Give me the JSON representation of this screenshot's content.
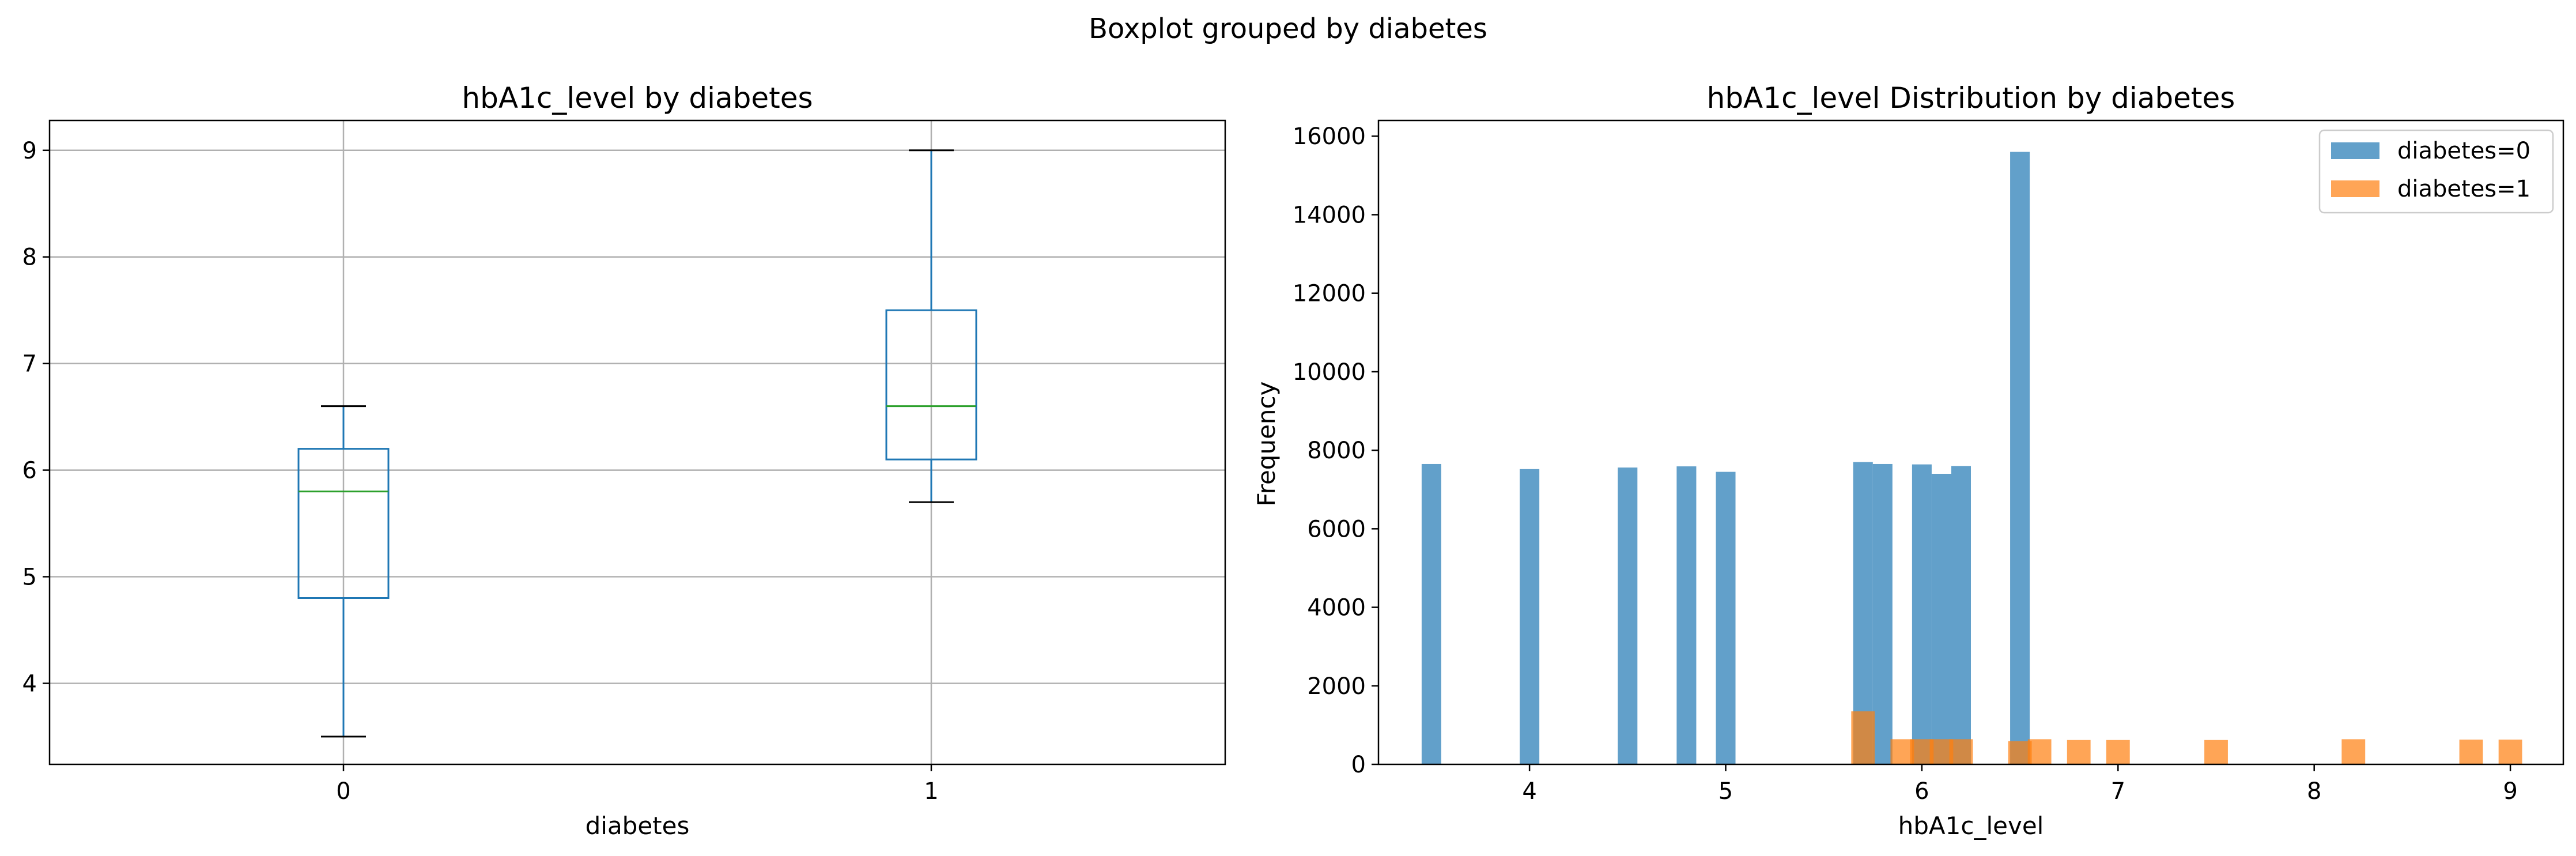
{
  "figure": {
    "suptitle": "Boxplot grouped by diabetes"
  },
  "colors": {
    "box": "#1f77b4",
    "median": "#2ca02c",
    "cap": "#000000",
    "series0": "#1f77b4",
    "series1": "#ff7f0e",
    "grid": "#b0b0b0"
  },
  "chart_data": [
    {
      "type": "box",
      "title": "hbA1c_level by diabetes",
      "xlabel": "diabetes",
      "ylabel": "",
      "categories": [
        "0",
        "1"
      ],
      "boxes": [
        {
          "name": "0",
          "whisker_low": 3.5,
          "q1": 4.8,
          "median": 5.8,
          "q3": 6.2,
          "whisker_high": 6.6
        },
        {
          "name": "1",
          "whisker_low": 5.7,
          "q1": 6.1,
          "median": 6.6,
          "q3": 7.5,
          "whisker_high": 9.0
        }
      ],
      "ylim": [
        3.24,
        9.28
      ],
      "yticks": [
        4,
        5,
        6,
        7,
        8,
        9
      ],
      "grid": true
    },
    {
      "type": "histogram",
      "title": "hbA1c_level Distribution by diabetes",
      "xlabel": "hbA1c_level",
      "ylabel": "Frequency",
      "xlim": [
        3.23,
        9.27
      ],
      "ylim": [
        0,
        16400
      ],
      "xticks": [
        4,
        5,
        6,
        7,
        8,
        9
      ],
      "yticks": [
        0,
        2000,
        4000,
        6000,
        8000,
        10000,
        12000,
        14000,
        16000
      ],
      "legend_position": "top-right",
      "series": [
        {
          "name": "diabetes=0",
          "bin_width": 0.1,
          "bins": [
            {
              "x": 3.5,
              "count": 7650
            },
            {
              "x": 4.0,
              "count": 7520
            },
            {
              "x": 4.5,
              "count": 7560
            },
            {
              "x": 4.8,
              "count": 7590
            },
            {
              "x": 5.0,
              "count": 7450
            },
            {
              "x": 5.7,
              "count": 7700
            },
            {
              "x": 5.8,
              "count": 7650
            },
            {
              "x": 6.0,
              "count": 7640
            },
            {
              "x": 6.1,
              "count": 7400
            },
            {
              "x": 6.2,
              "count": 7600
            },
            {
              "x": 6.5,
              "count": 15600
            }
          ]
        },
        {
          "name": "diabetes=1",
          "bin_width": 0.12,
          "bins": [
            {
              "x": 5.7,
              "count": 1350
            },
            {
              "x": 5.9,
              "count": 640
            },
            {
              "x": 6.0,
              "count": 640
            },
            {
              "x": 6.1,
              "count": 640
            },
            {
              "x": 6.2,
              "count": 640
            },
            {
              "x": 6.5,
              "count": 590
            },
            {
              "x": 6.6,
              "count": 640
            },
            {
              "x": 6.8,
              "count": 620
            },
            {
              "x": 7.0,
              "count": 620
            },
            {
              "x": 7.5,
              "count": 620
            },
            {
              "x": 8.2,
              "count": 640
            },
            {
              "x": 8.8,
              "count": 630
            },
            {
              "x": 9.0,
              "count": 630
            }
          ]
        }
      ]
    }
  ]
}
